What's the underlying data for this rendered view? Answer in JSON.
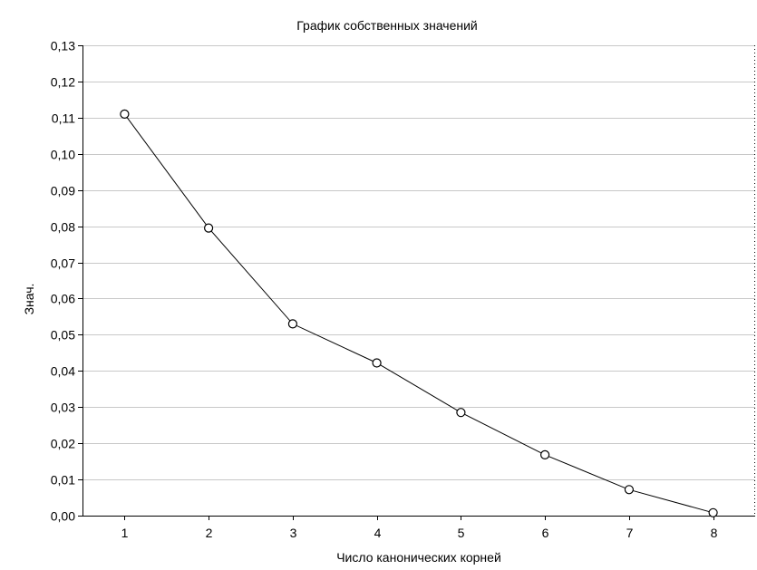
{
  "chart_data": {
    "type": "line",
    "title": "График собственных значений",
    "xlabel": "Число канонических корней",
    "ylabel": "Знач.",
    "x": [
      1,
      2,
      3,
      4,
      5,
      6,
      7,
      8
    ],
    "xticks": [
      "1",
      "2",
      "3",
      "4",
      "5",
      "6",
      "7",
      "8"
    ],
    "xlim": [
      0.5,
      8.5
    ],
    "ylim": [
      0,
      0.13
    ],
    "yticks": [
      0,
      0.01,
      0.02,
      0.03,
      0.04,
      0.05,
      0.06,
      0.07,
      0.08,
      0.09,
      0.1,
      0.11,
      0.12,
      0.13
    ],
    "ytick_labels": [
      "0,00",
      "0,01",
      "0,02",
      "0,03",
      "0,04",
      "0,05",
      "0,06",
      "0,07",
      "0,08",
      "0,09",
      "0,10",
      "0,11",
      "0,12",
      "0,13"
    ],
    "series": [
      {
        "values": [
          0.111,
          0.0795,
          0.053,
          0.0422,
          0.0285,
          0.0168,
          0.0072,
          0.0008
        ]
      }
    ],
    "grid": true,
    "line_color": "#000000",
    "grid_color": "#c8c8c8",
    "marker": "circle"
  }
}
